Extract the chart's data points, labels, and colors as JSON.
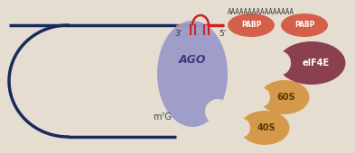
{
  "bg_color": "#e5ddd0",
  "loop_color": "#1a2a5e",
  "mrna_blue_color": "#1a2a5e",
  "mrna_red_color": "#cc2222",
  "ago_color": "#9b9bc8",
  "ago_label": "AGO",
  "m7g_label": "m⁷G",
  "40s_label": "40S",
  "60s_label": "60S",
  "eif4e_label": "eIF4E",
  "pabp_label": "PABP",
  "poly_a": "AAAAAAAAAAAAAAAA",
  "pabp_color": "#d4604a",
  "eif4e_color": "#8b4050",
  "subunit_color": "#d4994a",
  "label_3prime": "3’",
  "label_5prime": "5’",
  "ago_text_color": "#3a3a7a",
  "m7g_text_color": "#444444"
}
